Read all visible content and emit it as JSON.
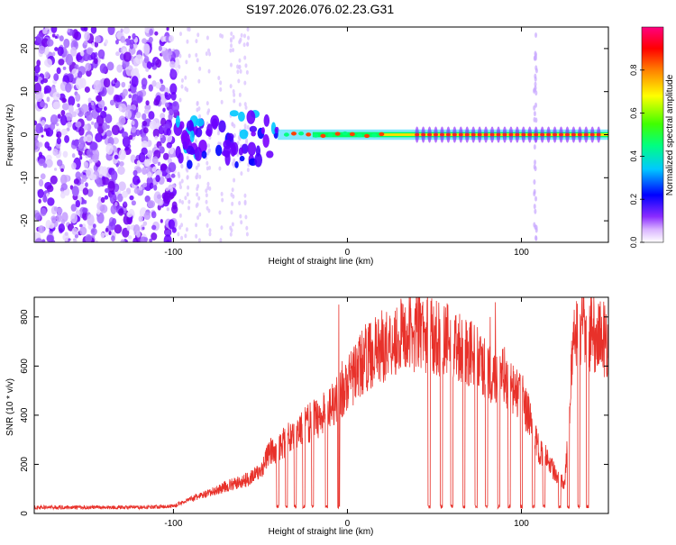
{
  "figure": {
    "title": "S197.2026.076.02.23.G31"
  },
  "chart_data": [
    {
      "type": "heatmap",
      "title": "S197.2026.076.02.23.G31",
      "xlabel": "Height of straight line (km)",
      "ylabel": "Frequency (Hz)",
      "xlim": [
        -180,
        150
      ],
      "ylim": [
        -25,
        25
      ],
      "xticks": [
        -100,
        0,
        100
      ],
      "xtick_labels": [
        "-100",
        "0",
        "100"
      ],
      "yticks": [
        -20,
        -10,
        0,
        10,
        20
      ],
      "ytick_labels": [
        "-20",
        "-10",
        "0",
        "10",
        "20"
      ],
      "colorbar": {
        "label": "Normalized spectral amplitude",
        "range": [
          0,
          1
        ],
        "ticks": [
          0,
          0.2,
          0.4,
          0.6,
          0.8
        ],
        "tick_labels": [
          "0.0",
          "0.2",
          "0.4",
          "0.6",
          "0.8"
        ],
        "colormap": [
          "#ffffff",
          "#d9b3ff",
          "#7a00ff",
          "#0000ff",
          "#00ffff",
          "#00ff00",
          "#ffff00",
          "#ff8000",
          "#ff0000",
          "#ff0080"
        ]
      },
      "regions": [
        {
          "name": "noise",
          "x": [
            -180,
            -100
          ],
          "amplitude": 0.15
        },
        {
          "name": "transition",
          "x": [
            -100,
            -40
          ],
          "amplitude": 0.3
        },
        {
          "name": "tone",
          "x": [
            -40,
            150
          ],
          "frequency_hz": 0,
          "amplitude": 0.95
        }
      ]
    },
    {
      "type": "line",
      "xlabel": "Height of straight line (km)",
      "ylabel": "SNR (10 * v/v)",
      "xlim": [
        -180,
        150
      ],
      "ylim": [
        0,
        880
      ],
      "xticks": [
        -100,
        0,
        100
      ],
      "xtick_labels": [
        "-100",
        "0",
        "100"
      ],
      "yticks": [
        0,
        200,
        400,
        600,
        800
      ],
      "ytick_labels": [
        "0",
        "200",
        "400",
        "600",
        "800"
      ],
      "line_color": "#e8312a",
      "series": [
        {
          "name": "SNR",
          "x": [
            -180,
            -150,
            -120,
            -100,
            -90,
            -80,
            -70,
            -60,
            -50,
            -45,
            -40,
            -35,
            -30,
            -25,
            -20,
            -15,
            -10,
            -5,
            0,
            5,
            10,
            20,
            30,
            40,
            50,
            60,
            70,
            80,
            85,
            90,
            95,
            100,
            105,
            110,
            115,
            120,
            125,
            130,
            140,
            150
          ],
          "values": [
            25,
            25,
            25,
            30,
            60,
            80,
            110,
            130,
            170,
            250,
            260,
            300,
            330,
            350,
            380,
            400,
            440,
            480,
            520,
            580,
            630,
            680,
            720,
            740,
            720,
            700,
            660,
            580,
            550,
            560,
            500,
            480,
            380,
            260,
            230,
            150,
            120,
            720,
            740,
            700
          ]
        }
      ],
      "dropouts_x": [
        -40,
        -35,
        -30,
        -25,
        -20,
        -12,
        -5,
        47,
        54,
        60,
        67,
        74,
        80,
        87,
        93,
        100,
        107,
        113,
        122,
        127,
        133,
        138
      ],
      "dropout_level": 20,
      "spikes": [
        {
          "x": -5,
          "value": 850
        },
        {
          "x": -3,
          "value": 620
        },
        {
          "x": 82,
          "value": 800
        },
        {
          "x": 85,
          "value": 860
        },
        {
          "x": 136,
          "value": 800
        }
      ]
    }
  ]
}
